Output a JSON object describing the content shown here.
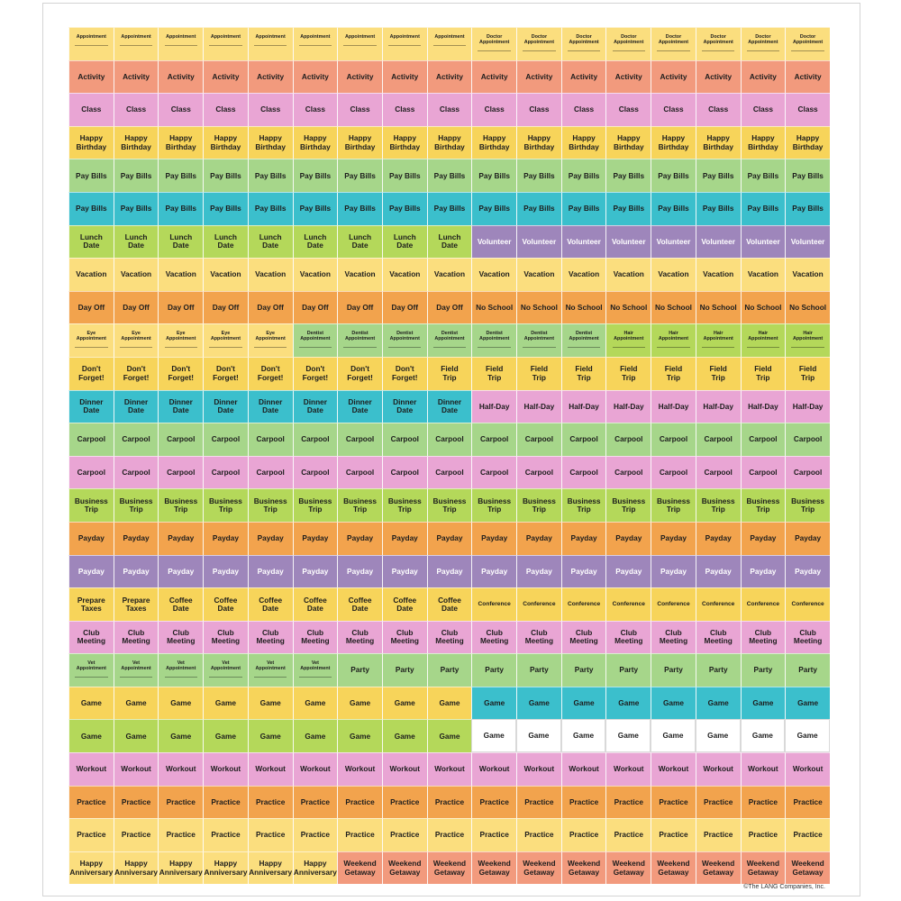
{
  "colors": {
    "yellow": "#fbde7e",
    "salmon": "#f29a7d",
    "pink": "#e9a5d4",
    "yellowgold": "#f7d45a",
    "green": "#a6d68a",
    "teal": "#3bbfcc",
    "lime": "#b4d85a",
    "purple": "#9e86bb",
    "orange": "#f2a34d",
    "white": "#ffffff"
  },
  "rows": [
    {
      "cells": [
        {
          "text": "Appointment",
          "color": "yellow",
          "small": true
        },
        {
          "text": "Appointment",
          "color": "yellow",
          "small": true
        },
        {
          "text": "Appointment",
          "color": "yellow",
          "small": true
        },
        {
          "text": "Appointment",
          "color": "yellow",
          "small": true
        },
        {
          "text": "Appointment",
          "color": "yellow",
          "small": true
        },
        {
          "text": "Appointment",
          "color": "yellow",
          "small": true
        },
        {
          "text": "Appointment",
          "color": "yellow",
          "small": true
        },
        {
          "text": "Appointment",
          "color": "yellow",
          "small": true
        },
        {
          "text": "Appointment",
          "color": "yellow",
          "small": true
        },
        {
          "text": "Doctor\nAppointment",
          "color": "yellow",
          "small": true
        },
        {
          "text": "Doctor\nAppointment",
          "color": "yellow",
          "small": true
        },
        {
          "text": "Doctor\nAppointment",
          "color": "yellow",
          "small": true
        },
        {
          "text": "Doctor\nAppointment",
          "color": "yellow",
          "small": true
        },
        {
          "text": "Doctor\nAppointment",
          "color": "yellow",
          "small": true
        },
        {
          "text": "Doctor\nAppointment",
          "color": "yellow",
          "small": true
        },
        {
          "text": "Doctor\nAppointment",
          "color": "yellow",
          "small": true
        },
        {
          "text": "Doctor\nAppointment",
          "color": "yellow",
          "small": true
        }
      ]
    },
    {
      "fill": {
        "text": "Activity",
        "color": "salmon"
      }
    },
    {
      "fill": {
        "text": "Class",
        "color": "pink"
      }
    },
    {
      "fill": {
        "text": "Happy\nBirthday",
        "color": "yellowgold"
      }
    },
    {
      "fill": {
        "text": "Pay Bills",
        "color": "green"
      }
    },
    {
      "fill": {
        "text": "Pay Bills",
        "color": "teal"
      }
    },
    {
      "split": [
        {
          "count": 9,
          "text": "Lunch\nDate",
          "color": "lime"
        },
        {
          "count": 8,
          "text": "Volunteer",
          "color": "purple",
          "light": true
        }
      ]
    },
    {
      "fill": {
        "text": "Vacation",
        "color": "yellow"
      }
    },
    {
      "split": [
        {
          "count": 9,
          "text": "Day Off",
          "color": "orange"
        },
        {
          "count": 8,
          "text": "No School",
          "color": "orange"
        }
      ]
    },
    {
      "split": [
        {
          "count": 5,
          "text": "Eye\nAppointment",
          "color": "yellow",
          "small": true
        },
        {
          "count": 7,
          "text": "Dentist\nAppointment",
          "color": "green",
          "small": true
        },
        {
          "count": 5,
          "text": "Hair\nAppointment",
          "color": "lime",
          "small": true
        }
      ]
    },
    {
      "split": [
        {
          "count": 8,
          "text": "Don't\nForget!",
          "color": "yellowgold"
        },
        {
          "count": 9,
          "text": "Field\nTrip",
          "color": "yellowgold"
        }
      ]
    },
    {
      "split": [
        {
          "count": 9,
          "text": "Dinner\nDate",
          "color": "teal"
        },
        {
          "count": 8,
          "text": "Half-Day",
          "color": "pink"
        }
      ]
    },
    {
      "fill": {
        "text": "Carpool",
        "color": "green"
      }
    },
    {
      "fill": {
        "text": "Carpool",
        "color": "pink"
      }
    },
    {
      "fill": {
        "text": "Business\nTrip",
        "color": "lime"
      }
    },
    {
      "fill": {
        "text": "Payday",
        "color": "orange"
      }
    },
    {
      "fill": {
        "text": "Payday",
        "color": "purple",
        "light": true
      }
    },
    {
      "cells": [
        {
          "text": "Prepare\nTaxes",
          "color": "yellowgold"
        },
        {
          "text": "Prepare\nTaxes",
          "color": "yellowgold"
        },
        {
          "text": "Coffee\nDate",
          "color": "yellowgold"
        },
        {
          "text": "Coffee\nDate",
          "color": "yellowgold"
        },
        {
          "text": "Coffee\nDate",
          "color": "yellowgold"
        },
        {
          "text": "Coffee\nDate",
          "color": "yellowgold"
        },
        {
          "text": "Coffee\nDate",
          "color": "yellowgold"
        },
        {
          "text": "Coffee\nDate",
          "color": "yellowgold"
        },
        {
          "text": "Coffee\nDate",
          "color": "yellowgold"
        },
        {
          "text": "Conference",
          "color": "yellowgold",
          "mid": true
        },
        {
          "text": "Conference",
          "color": "yellowgold",
          "mid": true
        },
        {
          "text": "Conference",
          "color": "yellowgold",
          "mid": true
        },
        {
          "text": "Conference",
          "color": "yellowgold",
          "mid": true
        },
        {
          "text": "Conference",
          "color": "yellowgold",
          "mid": true
        },
        {
          "text": "Conference",
          "color": "yellowgold",
          "mid": true
        },
        {
          "text": "Conference",
          "color": "yellowgold",
          "mid": true
        },
        {
          "text": "Conference",
          "color": "yellowgold",
          "mid": true
        }
      ]
    },
    {
      "fill": {
        "text": "Club\nMeeting",
        "color": "pink"
      }
    },
    {
      "split": [
        {
          "count": 6,
          "text": "Vet\nAppointment",
          "color": "green",
          "small": true
        },
        {
          "count": 11,
          "text": "Party",
          "color": "green"
        }
      ]
    },
    {
      "split": [
        {
          "count": 9,
          "text": "Game",
          "color": "yellowgold"
        },
        {
          "count": 8,
          "text": "Game",
          "color": "teal"
        }
      ]
    },
    {
      "split": [
        {
          "count": 9,
          "text": "Game",
          "color": "lime"
        },
        {
          "count": 8,
          "text": "Game",
          "color": "white"
        }
      ]
    },
    {
      "fill": {
        "text": "Workout",
        "color": "pink"
      }
    },
    {
      "fill": {
        "text": "Practice",
        "color": "orange"
      }
    },
    {
      "fill": {
        "text": "Practice",
        "color": "yellow"
      }
    },
    {
      "split": [
        {
          "count": 6,
          "text": "Happy\nAnniversary",
          "color": "yellow"
        },
        {
          "count": 11,
          "text": "Weekend\nGetaway",
          "color": "salmon"
        }
      ]
    }
  ],
  "footer": {
    "copyright": "©The LANG Companies, Inc."
  }
}
